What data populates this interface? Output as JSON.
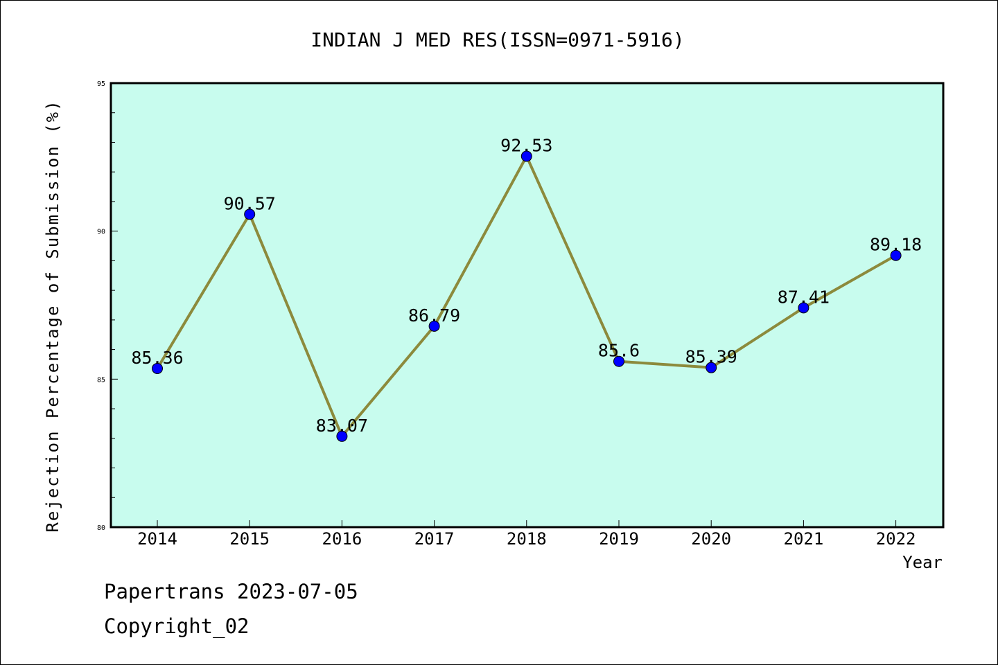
{
  "chart_data": {
    "type": "line",
    "title": "INDIAN J MED RES(ISSN=0971-5916)",
    "xlabel": "Year",
    "ylabel": "Rejection Percentage of Submission (%)",
    "categories": [
      "2014",
      "2015",
      "2016",
      "2017",
      "2018",
      "2019",
      "2020",
      "2021",
      "2022"
    ],
    "series": [
      {
        "values": [
          85.36,
          90.57,
          83.07,
          86.79,
          92.53,
          85.6,
          85.39,
          87.41,
          89.18
        ],
        "value_labels": [
          "85.36",
          "90.57",
          "83.07",
          "86.79",
          "92.53",
          "85.6",
          "85.39",
          "87.41",
          "89.18"
        ],
        "line_color": "#8c8a3c",
        "marker_color": "#0000ff"
      }
    ],
    "ylim": [
      80,
      95
    ],
    "y_major_ticks": [
      80,
      85,
      90,
      95
    ],
    "y_minor_step": 1,
    "y_tick_labels": [
      "80",
      "85",
      "90",
      "95"
    ],
    "grid": false,
    "legend": "none",
    "plot_background": "#c8fcee"
  },
  "footer": {
    "line1": "Papertrans 2023-07-05",
    "line2": "Copyright_02"
  }
}
